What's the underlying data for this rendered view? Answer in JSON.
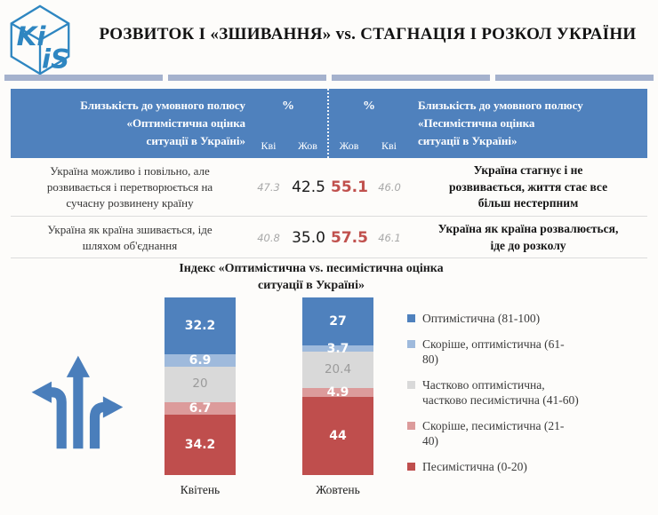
{
  "header": {
    "logo_top": "Ki",
    "logo_bottom": "iS",
    "title": "РОЗВИТОК І «ЗШИВАННЯ» vs. СТАГНАЦІЯ І РОЗКОЛ УКРАЇНИ"
  },
  "table": {
    "percent_label": "%",
    "left_header": "Близькість до умовного полюсу «Оптимістична оцінка ситуації в Україні»",
    "left_header_display": "Близькість до умовного полюсу\n«Оптимістична оцінка\nситуації в Україні»",
    "right_header": "Близькість до умовного полюсу «Песимістична оцінка ситуації в Україні»",
    "right_header_display": "Близькість до умовного полюсу\n«Песимістична оцінка\nситуації в Україні»",
    "left_subcols": [
      "Кві",
      "Жов"
    ],
    "right_subcols": [
      "Жов",
      "Кві"
    ],
    "rows": [
      {
        "left_statement": "Україна можливо і повільно, але\nрозвивається і перетворюється на\nсучасну розвинену країну",
        "left_kvi": "47.3",
        "left_zhov": "42.5",
        "right_zhov": "55.1",
        "right_kvi": "46.0",
        "right_statement": "Україна стагнує і не\nрозвивається, життя стає все\nбільш нестерпним"
      },
      {
        "left_statement": "Україна як країна зшивається, іде\nшляхом об'єднання",
        "left_kvi": "40.8",
        "left_zhov": "35.0",
        "right_zhov": "57.5",
        "right_kvi": "46.1",
        "right_statement": "Україна як країна розвалюється,\nіде до розколу"
      }
    ]
  },
  "chart_data": {
    "type": "bar",
    "stacked": true,
    "title": "Індекс «Оптимістична vs. песимістична оцінка ситуації в Україні»",
    "title_display": "Індекс «Оптимістична vs. песимістична оцінка\nситуації в Україні»",
    "categories": [
      "Квітень",
      "Жовтень"
    ],
    "ylim": [
      0,
      100
    ],
    "legend_position": "right",
    "series": [
      {
        "name": "Оптимістична (81-100)",
        "legend_label": "Оптимістична (81-100)",
        "color": "#4f81bd",
        "label_color": "#ffffff",
        "bold": true,
        "values": [
          32.2,
          27
        ],
        "labels": [
          "32.2",
          "27"
        ]
      },
      {
        "name": "Скоріше, оптимістична (61-80)",
        "legend_label": "Скоріше, оптимістична (61-\n80)",
        "color": "#9fbadc",
        "label_color": "#ffffff",
        "bold": true,
        "values": [
          6.9,
          3.7
        ],
        "labels": [
          "6.9",
          "3.7"
        ]
      },
      {
        "name": "Частково оптимістична, частково песимістична (41-60)",
        "legend_label": "Частково оптимістична,\nчастково песимістична (41-60)",
        "color": "#d9d9d9",
        "label_color": "#9b9b9b",
        "bold": false,
        "values": [
          20,
          20.4
        ],
        "labels": [
          "20",
          "20.4"
        ]
      },
      {
        "name": "Скоріше, песимістична (21-40)",
        "legend_label": "Скоріше, песимістична (21-\n40)",
        "color": "#dc9b9b",
        "label_color": "#ffffff",
        "bold": true,
        "values": [
          6.7,
          4.9
        ],
        "labels": [
          "6.7",
          "4.9"
        ]
      },
      {
        "name": "Песимістична (0-20)",
        "legend_label": "Песимістична (0-20)",
        "color": "#bf4e4d",
        "label_color": "#ffffff",
        "bold": true,
        "values": [
          34.2,
          44
        ],
        "labels": [
          "34.2",
          "44"
        ]
      }
    ]
  }
}
